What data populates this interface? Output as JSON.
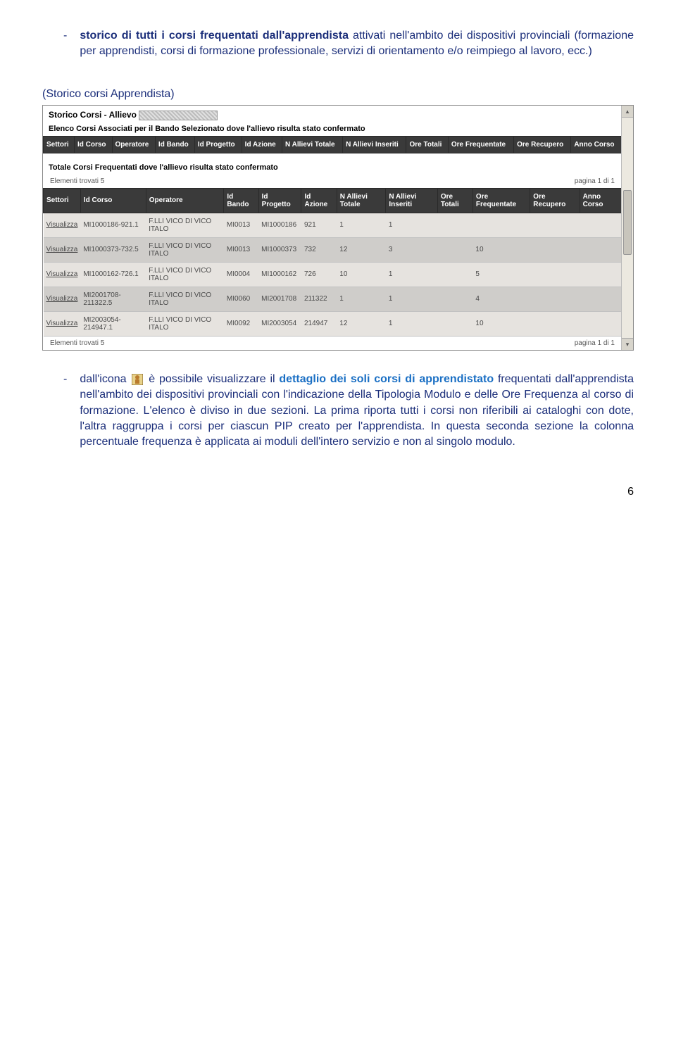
{
  "para1": {
    "lead": "storico di tutti i corsi frequentati dall'apprendista",
    "rest": " attivati nell'ambito dei dispositivi provinciali (formazione per apprendisti, corsi di formazione professionale, servizi di orientamento e/o reimpiego al lavoro, ecc.)"
  },
  "storico_label": "(Storico corsi Apprendista)",
  "ss": {
    "title_prefix": "Storico Corsi - Allievo ",
    "sub1": "Elenco Corsi Associati per il Bando Selezionato dove l'allievo risulta stato confermato",
    "sub2": "Totale Corsi Frequentati dove l'allievo risulta stato confermato",
    "meta_left": "Elementi trovati 5",
    "meta_right": "pagina 1 di 1",
    "headers1": [
      "Settori",
      "Id Corso",
      "Operatore",
      "Id Bando",
      "Id Progetto",
      "Id Azione",
      "N Allievi Totale",
      "N Allievi Inseriti",
      "Ore Totali",
      "Ore Frequentate",
      "Ore Recupero",
      "Anno Corso"
    ],
    "headers2": [
      "Settori",
      "Id Corso",
      "Operatore",
      "Id Bando",
      "Id Progetto",
      "Id Azione",
      "N Allievi Totale",
      "N Allievi Inseriti",
      "Ore Totali",
      "Ore Frequentate",
      "Ore Recupero",
      "Anno Corso"
    ],
    "rows": [
      {
        "link": "Visualizza",
        "idc": "MI1000186-921.1",
        "op": "F.LLI VICO DI VICO ITALO",
        "bando": "MI0013",
        "prog": "MI1000186",
        "az": "921",
        "nat": "1",
        "nai": "1",
        "ot": "",
        "of": "",
        "orc": "",
        "anno": ""
      },
      {
        "link": "Visualizza",
        "idc": "MI1000373-732.5",
        "op": "F.LLI VICO DI VICO ITALO",
        "bando": "MI0013",
        "prog": "MI1000373",
        "az": "732",
        "nat": "12",
        "nai": "3",
        "ot": "",
        "of": "10",
        "orc": "",
        "anno": ""
      },
      {
        "link": "Visualizza",
        "idc": "MI1000162-726.1",
        "op": "F.LLI VICO DI VICO ITALO",
        "bando": "MI0004",
        "prog": "MI1000162",
        "az": "726",
        "nat": "10",
        "nai": "1",
        "ot": "",
        "of": "5",
        "orc": "",
        "anno": ""
      },
      {
        "link": "Visualizza",
        "idc": "MI2001708-211322.5",
        "op": "F.LLI VICO DI VICO ITALO",
        "bando": "MI0060",
        "prog": "MI2001708",
        "az": "211322",
        "nat": "1",
        "nai": "1",
        "ot": "",
        "of": "4",
        "orc": "",
        "anno": ""
      },
      {
        "link": "Visualizza",
        "idc": "MI2003054-214947.1",
        "op": "F.LLI VICO DI VICO ITALO",
        "bando": "MI0092",
        "prog": "MI2003054",
        "az": "214947",
        "nat": "12",
        "nai": "1",
        "ot": "",
        "of": "10",
        "orc": "",
        "anno": ""
      }
    ]
  },
  "para2": {
    "pre": "dall'icona ",
    "mid1": " è possibile visualizzare il ",
    "link": "dettaglio dei soli corsi di apprendistato",
    "rest": " frequentati dall'apprendista nell'ambito dei dispositivi provinciali con l'indicazione della Tipologia Modulo e delle Ore Frequenza al corso di formazione. L'elenco è diviso in due sezioni. La prima riporta tutti i corsi non riferibili ai cataloghi con dote, l'altra raggruppa i corsi per ciascun PIP creato per l'apprendista. In questa seconda sezione la colonna percentuale frequenza è applicata ai moduli dell'intero servizio e non al singolo modulo."
  },
  "page_number": "6"
}
